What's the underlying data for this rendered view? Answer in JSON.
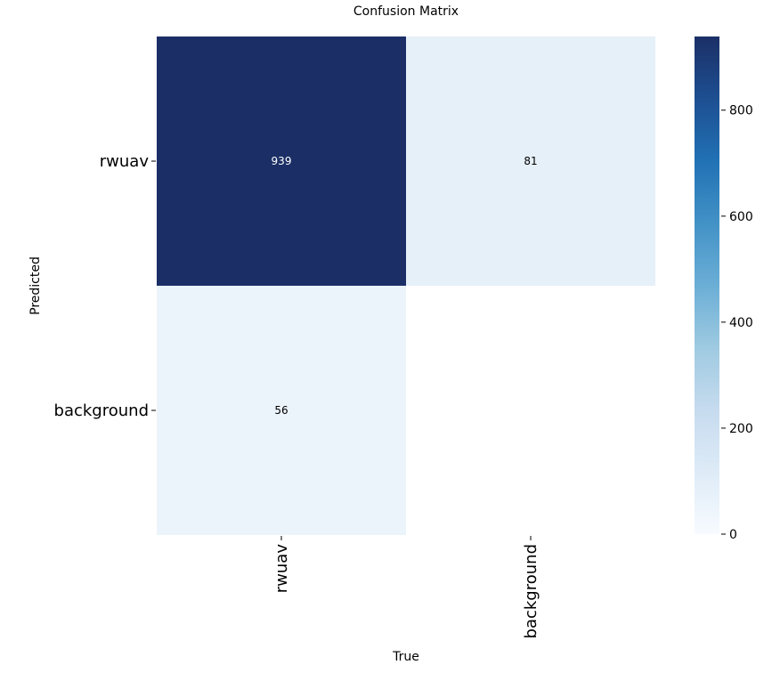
{
  "chart_data": {
    "type": "heatmap",
    "title": "Confusion Matrix",
    "xlabel": "True",
    "ylabel": "Predicted",
    "x_categories": [
      "rwuav",
      "background"
    ],
    "y_categories": [
      "rwuav",
      "background"
    ],
    "values": [
      [
        939,
        81
      ],
      [
        56,
        null
      ]
    ],
    "colorbar": {
      "min": 0,
      "max": 939,
      "ticks": [
        0,
        200,
        400,
        600,
        800
      ]
    },
    "colormap": "Blues",
    "colors": {
      "low": "#f7fbff",
      "high": "#1b2f66"
    },
    "grid": false
  }
}
